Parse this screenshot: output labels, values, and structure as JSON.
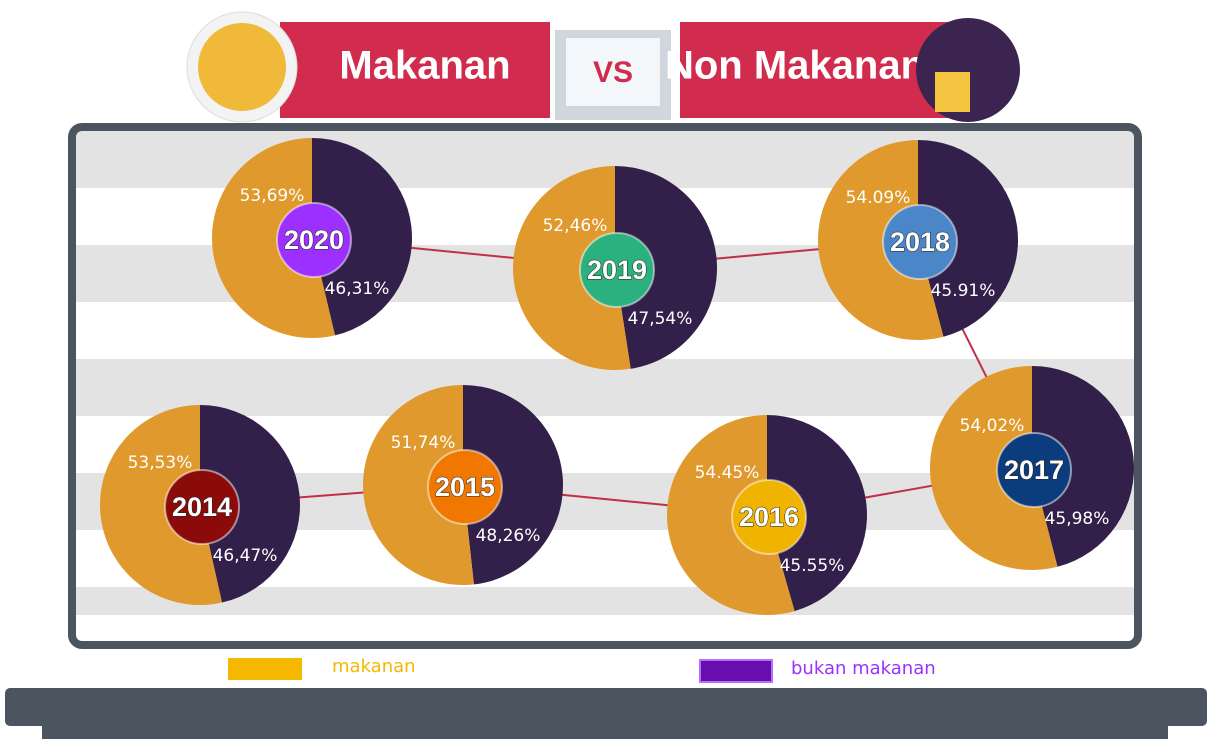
{
  "header": {
    "left": "Makanan",
    "middle": "VS",
    "right": "Non Makanan"
  },
  "chart_data": [
    {
      "type": "pie",
      "title": "2020",
      "categories": [
        "makanan",
        "bukan makanan"
      ],
      "values": [
        53.69,
        46.31
      ],
      "value_labels": [
        "53,69%",
        "46,31%"
      ],
      "colors": [
        "#e0992c",
        "#33204a"
      ],
      "badge_color": "#9b30ff"
    },
    {
      "type": "pie",
      "title": "2019",
      "categories": [
        "makanan",
        "bukan makanan"
      ],
      "values": [
        52.46,
        47.54
      ],
      "value_labels": [
        "52,46%",
        "47,54%"
      ],
      "colors": [
        "#e0992c",
        "#33204a"
      ],
      "badge_color": "#2bb07f"
    },
    {
      "type": "pie",
      "title": "2018",
      "categories": [
        "makanan",
        "bukan makanan"
      ],
      "values": [
        54.09,
        45.91
      ],
      "value_labels": [
        "54.09%",
        "45.91%"
      ],
      "colors": [
        "#e0992c",
        "#33204a"
      ],
      "badge_color": "#4a86c8"
    },
    {
      "type": "pie",
      "title": "2017",
      "categories": [
        "makanan",
        "bukan makanan"
      ],
      "values": [
        54.02,
        45.98
      ],
      "value_labels": [
        "54,02%",
        "45,98%"
      ],
      "colors": [
        "#e0992c",
        "#33204a"
      ],
      "badge_color": "#0b3d7e"
    },
    {
      "type": "pie",
      "title": "2016",
      "categories": [
        "makanan",
        "bukan makanan"
      ],
      "values": [
        54.45,
        45.55
      ],
      "value_labels": [
        "54.45%",
        "45.55%"
      ],
      "colors": [
        "#e0992c",
        "#33204a"
      ],
      "badge_color": "#f0b400"
    },
    {
      "type": "pie",
      "title": "2015",
      "categories": [
        "makanan",
        "bukan makanan"
      ],
      "values": [
        51.74,
        48.26
      ],
      "value_labels": [
        "51,74%",
        "48,26%"
      ],
      "colors": [
        "#e0992c",
        "#33204a"
      ],
      "badge_color": "#f07800"
    },
    {
      "type": "pie",
      "title": "2014",
      "categories": [
        "makanan",
        "bukan makanan"
      ],
      "values": [
        53.53,
        46.47
      ],
      "value_labels": [
        "53,53%",
        "46,47%"
      ],
      "colors": [
        "#e0992c",
        "#33204a"
      ],
      "badge_color": "#8b0a0a"
    }
  ]
}
